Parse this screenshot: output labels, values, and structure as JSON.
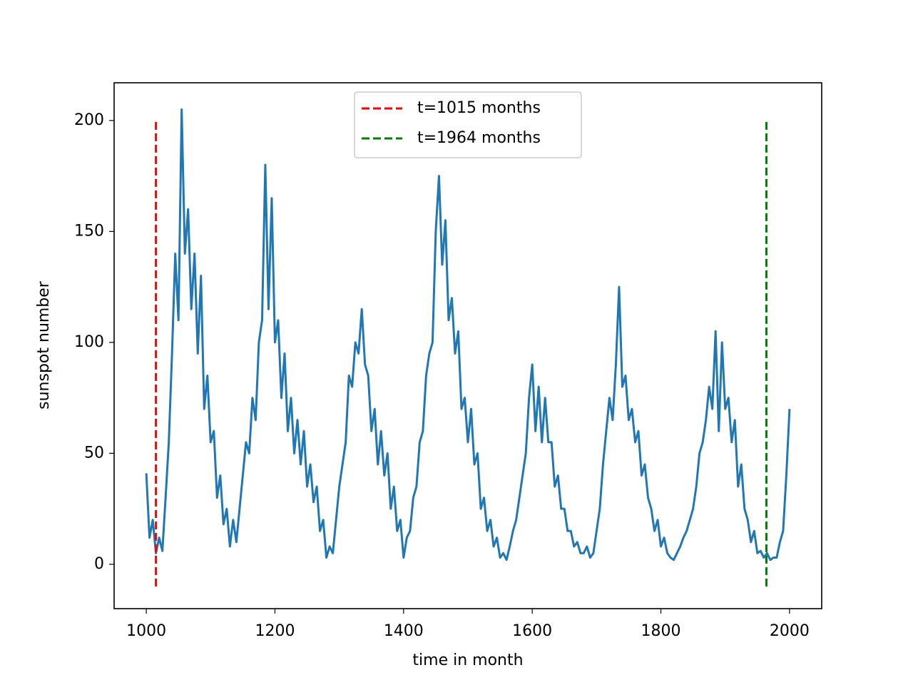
{
  "chart_data": {
    "type": "line",
    "xlabel": "time in month",
    "ylabel": "sunspot number",
    "xlim": [
      950,
      2050
    ],
    "ylim": [
      -20,
      217
    ],
    "xticks": [
      1000,
      1200,
      1400,
      1600,
      1800,
      2000
    ],
    "yticks": [
      0,
      50,
      100,
      150,
      200
    ],
    "legend": "upper center",
    "x": [
      1000,
      1005,
      1010,
      1015,
      1020,
      1025,
      1030,
      1035,
      1040,
      1045,
      1050,
      1055,
      1060,
      1065,
      1070,
      1075,
      1080,
      1085,
      1090,
      1095,
      1100,
      1105,
      1110,
      1115,
      1120,
      1125,
      1130,
      1135,
      1140,
      1145,
      1150,
      1155,
      1160,
      1165,
      1170,
      1175,
      1180,
      1185,
      1190,
      1195,
      1200,
      1205,
      1210,
      1215,
      1220,
      1225,
      1230,
      1235,
      1240,
      1245,
      1250,
      1255,
      1260,
      1265,
      1270,
      1275,
      1280,
      1285,
      1290,
      1295,
      1300,
      1305,
      1310,
      1315,
      1320,
      1325,
      1330,
      1335,
      1340,
      1345,
      1350,
      1355,
      1360,
      1365,
      1370,
      1375,
      1380,
      1385,
      1390,
      1395,
      1400,
      1405,
      1410,
      1415,
      1420,
      1425,
      1430,
      1435,
      1440,
      1445,
      1450,
      1455,
      1460,
      1465,
      1470,
      1475,
      1480,
      1485,
      1490,
      1495,
      1500,
      1505,
      1510,
      1515,
      1520,
      1525,
      1530,
      1535,
      1540,
      1545,
      1550,
      1555,
      1560,
      1565,
      1570,
      1575,
      1580,
      1585,
      1590,
      1595,
      1600,
      1605,
      1610,
      1615,
      1620,
      1625,
      1630,
      1635,
      1640,
      1645,
      1650,
      1655,
      1660,
      1665,
      1670,
      1675,
      1680,
      1685,
      1690,
      1695,
      1700,
      1705,
      1710,
      1715,
      1720,
      1725,
      1730,
      1735,
      1740,
      1745,
      1750,
      1755,
      1760,
      1765,
      1770,
      1775,
      1780,
      1785,
      1790,
      1795,
      1800,
      1805,
      1810,
      1815,
      1820,
      1825,
      1830,
      1835,
      1840,
      1845,
      1850,
      1855,
      1860,
      1865,
      1870,
      1875,
      1880,
      1885,
      1890,
      1895,
      1900,
      1905,
      1910,
      1915,
      1920,
      1925,
      1930,
      1935,
      1940,
      1945,
      1950,
      1955,
      1960,
      1965,
      1970,
      1975,
      1980,
      1985,
      1990,
      1995,
      2000
    ],
    "series": [
      {
        "color": "#1f77b4",
        "values": [
          41,
          12,
          20,
          5,
          12,
          6,
          30,
          55,
          95,
          140,
          110,
          205,
          140,
          160,
          115,
          140,
          95,
          130,
          70,
          85,
          55,
          60,
          30,
          40,
          18,
          25,
          8,
          20,
          10,
          25,
          40,
          55,
          50,
          75,
          65,
          100,
          110,
          180,
          115,
          165,
          100,
          110,
          75,
          95,
          60,
          75,
          50,
          65,
          45,
          60,
          35,
          45,
          28,
          35,
          15,
          20,
          3,
          8,
          5,
          20,
          35,
          45,
          55,
          85,
          80,
          100,
          95,
          115,
          90,
          85,
          60,
          70,
          45,
          60,
          40,
          50,
          25,
          35,
          15,
          20,
          3,
          12,
          15,
          30,
          35,
          55,
          60,
          85,
          95,
          100,
          150,
          175,
          135,
          155,
          110,
          120,
          95,
          105,
          70,
          75,
          55,
          70,
          45,
          50,
          25,
          30,
          15,
          20,
          8,
          12,
          3,
          5,
          2,
          8,
          15,
          20,
          30,
          40,
          50,
          75,
          90,
          60,
          80,
          55,
          75,
          55,
          55,
          35,
          40,
          25,
          25,
          15,
          15,
          8,
          10,
          5,
          5,
          8,
          3,
          5,
          15,
          25,
          45,
          60,
          75,
          65,
          90,
          125,
          80,
          85,
          65,
          70,
          55,
          60,
          40,
          45,
          30,
          25,
          15,
          20,
          8,
          12,
          5,
          3,
          2,
          5,
          8,
          12,
          15,
          20,
          25,
          35,
          50,
          55,
          65,
          80,
          70,
          105,
          60,
          100,
          70,
          75,
          55,
          65,
          35,
          45,
          25,
          20,
          10,
          15,
          5,
          6,
          3,
          5,
          2,
          3,
          3,
          10,
          15,
          40,
          70
        ]
      }
    ],
    "vlines": [
      {
        "x": 1015,
        "ymin": -10,
        "ymax": 200,
        "color": "#ff0000",
        "label": "t=1015 months"
      },
      {
        "x": 1964,
        "ymin": -10,
        "ymax": 200,
        "color": "#008000",
        "label": "t=1964 months"
      }
    ]
  }
}
